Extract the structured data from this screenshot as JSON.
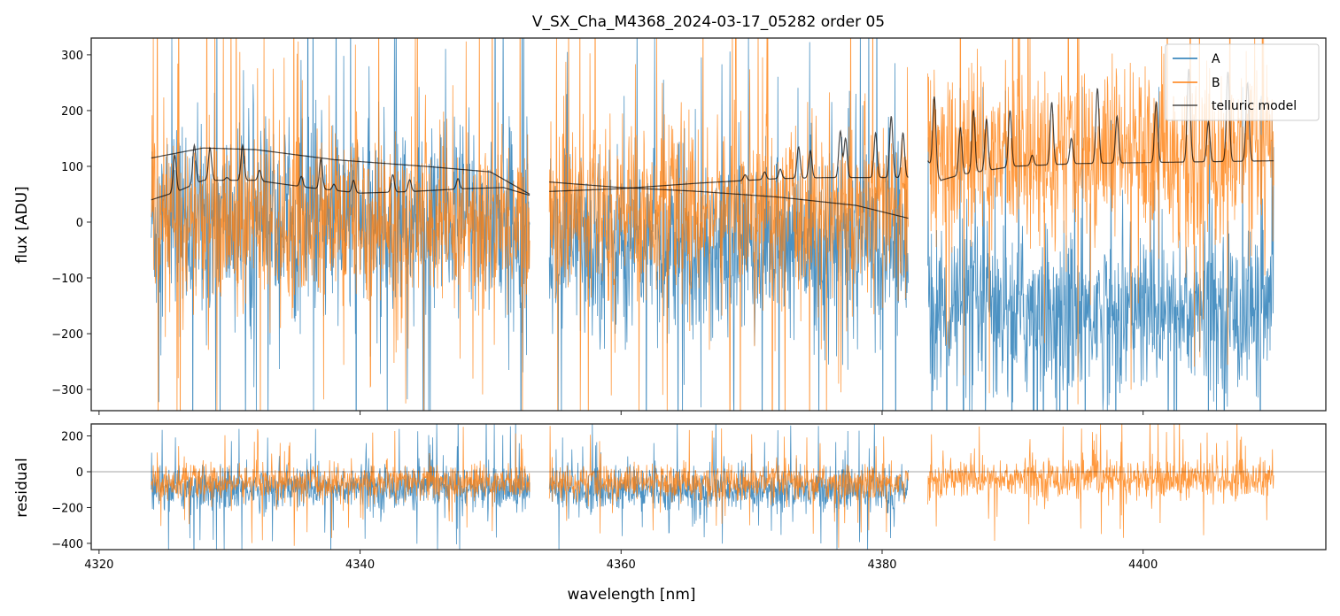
{
  "chart_data": {
    "title": "V_SX_Cha_M4368_2024-03-17_05282  order 05",
    "xlabel": "wavelength [nm]",
    "xlim": [
      4319.4,
      4414.0
    ],
    "xticks": [
      4320,
      4340,
      4360,
      4380,
      4400
    ],
    "legend_position": "top-right",
    "colors": {
      "A": "#1f77b4",
      "B": "#ff7f0e",
      "telluric": "#000000"
    },
    "panels": [
      {
        "type": "line",
        "ylabel": "flux [ADU]",
        "ylim": [
          -338,
          330
        ],
        "yticks": [
          -300,
          -200,
          -100,
          0,
          100,
          200,
          300
        ],
        "legend": [
          "A",
          "B",
          "telluric model"
        ],
        "segments": [
          {
            "x_range": [
              4324.0,
              4353.0
            ],
            "A_mean": 0,
            "A_spread": 130,
            "B_mean": 0,
            "B_spread": 110
          },
          {
            "x_range": [
              4354.5,
              4382.0
            ],
            "A_mean": -40,
            "A_spread": 120,
            "B_mean": 20,
            "B_spread": 110
          },
          {
            "x_range": [
              4383.5,
              4410.0
            ],
            "A_mean": -160,
            "A_spread": 110,
            "B_mean": 120,
            "B_spread": 110
          }
        ],
        "telluric_model": {
          "smooth_curves": [
            {
              "x": [
                4324,
                4328,
                4332,
                4338,
                4345,
                4350,
                4353
              ],
              "y": [
                115,
                133,
                130,
                112,
                100,
                90,
                50
              ]
            },
            {
              "x": [
                4354.5,
                4360,
                4366,
                4372,
                4378,
                4382
              ],
              "y": [
                72,
                62,
                55,
                45,
                30,
                7
              ]
            }
          ],
          "line_curves": [
            {
              "baseline_x": [
                4324,
                4326,
                4328,
                4332,
                4336,
                4340,
                4344,
                4348,
                4351,
                4353
              ],
              "baseline_y": [
                40,
                55,
                75,
                75,
                62,
                52,
                55,
                60,
                62,
                48
              ],
              "peaks": [
                [
                  4325.8,
                  120
                ],
                [
                  4327.3,
                  138
                ],
                [
                  4328.5,
                  133
                ],
                [
                  4329.8,
                  80
                ],
                [
                  4331.0,
                  138
                ],
                [
                  4332.3,
                  93
                ],
                [
                  4335.5,
                  82
                ],
                [
                  4337.0,
                  113
                ],
                [
                  4338.0,
                  68
                ],
                [
                  4339.5,
                  75
                ],
                [
                  4342.5,
                  85
                ],
                [
                  4343.8,
                  76
                ],
                [
                  4347.5,
                  78
                ]
              ]
            },
            {
              "baseline_x": [
                4354.5,
                4360,
                4366,
                4372,
                4376,
                4382
              ],
              "baseline_y": [
                55,
                60,
                70,
                78,
                80,
                80
              ],
              "peaks": [
                [
                  4369.5,
                  85
                ],
                [
                  4371.0,
                  90
                ],
                [
                  4372.2,
                  95
                ],
                [
                  4373.6,
                  135
                ],
                [
                  4374.5,
                  128
                ],
                [
                  4376.8,
                  163
                ],
                [
                  4377.2,
                  150
                ],
                [
                  4379.5,
                  160
                ],
                [
                  4380.7,
                  190
                ],
                [
                  4381.6,
                  160
                ]
              ]
            },
            {
              "baseline_x": [
                4383.5,
                4384.5,
                4386,
                4390,
                4395,
                4410
              ],
              "baseline_y": [
                110,
                75,
                85,
                100,
                105,
                110
              ],
              "peaks": [
                [
                  4384.0,
                  225
                ],
                [
                  4386.0,
                  170
                ],
                [
                  4387.0,
                  200
                ],
                [
                  4388.0,
                  185
                ],
                [
                  4389.8,
                  200
                ],
                [
                  4391.5,
                  120
                ],
                [
                  4393.0,
                  215
                ],
                [
                  4394.5,
                  150
                ],
                [
                  4396.5,
                  240
                ],
                [
                  4398.0,
                  190
                ],
                [
                  4401.0,
                  215
                ],
                [
                  4403.5,
                  275
                ],
                [
                  4405.0,
                  180
                ],
                [
                  4406.5,
                  270
                ],
                [
                  4408.0,
                  250
                ]
              ]
            }
          ]
        }
      },
      {
        "type": "line",
        "ylabel": "residual",
        "ylim": [
          -435,
          267
        ],
        "yticks": [
          -400,
          -200,
          0,
          200
        ],
        "reference_line": 0,
        "segments": [
          {
            "x_range": [
              4324.0,
              4353.0
            ],
            "A_mean": -90,
            "A_spread": 90,
            "B_mean": -60,
            "B_spread": 70
          },
          {
            "x_range": [
              4354.5,
              4382.0
            ],
            "A_mean": -100,
            "A_spread": 90,
            "B_mean": -60,
            "B_spread": 70
          },
          {
            "x_range": [
              4383.5,
              4410.0
            ],
            "B_mean": -40,
            "B_spread": 80
          }
        ]
      }
    ]
  }
}
